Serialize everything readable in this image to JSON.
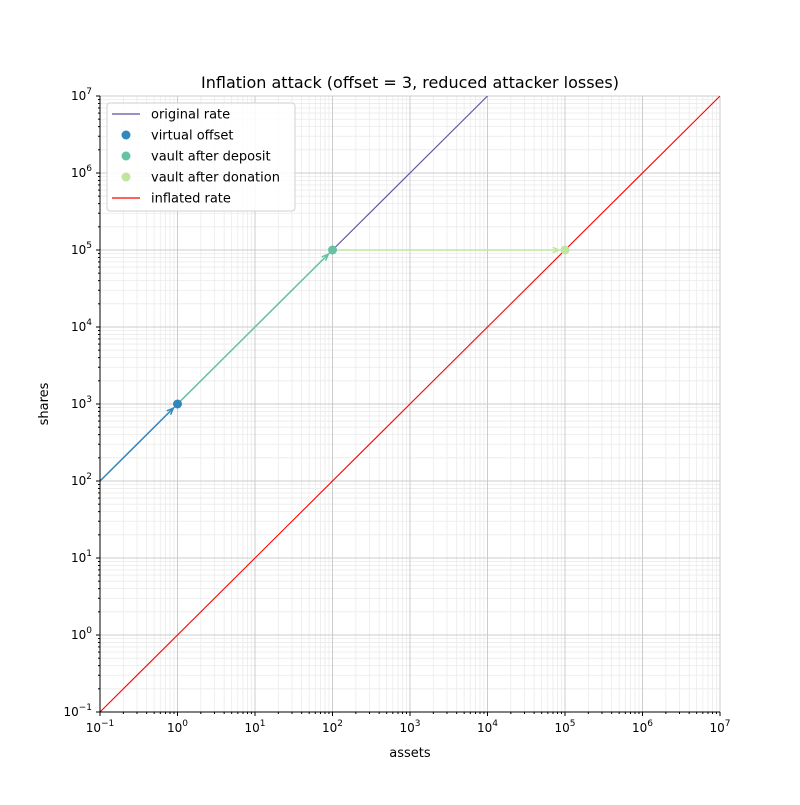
{
  "chart_data": {
    "type": "line",
    "title": "Inflation attack (offset = 3, reduced attacker losses)",
    "xlabel": "assets",
    "ylabel": "shares",
    "xscale": "log",
    "yscale": "log",
    "xlim": [
      0.1,
      10000000
    ],
    "ylim": [
      0.1,
      10000000
    ],
    "grid": true,
    "legend_placement": "top-left",
    "x_tick_exponents": [
      "-1",
      "0",
      "1",
      "2",
      "3",
      "4",
      "5",
      "6",
      "7"
    ],
    "y_tick_exponents": [
      "-1",
      "0",
      "1",
      "2",
      "3",
      "4",
      "5",
      "6",
      "7"
    ],
    "lines": [
      {
        "name": "original rate",
        "color": "#5e4fa2",
        "x": [
          0.1,
          10000
        ],
        "y": [
          100,
          10000000
        ]
      },
      {
        "name": "inflated rate",
        "color": "#ff0000",
        "x": [
          0.1,
          10000000
        ],
        "y": [
          0.1,
          10000000
        ]
      }
    ],
    "points": [
      {
        "name": "virtual offset",
        "color": "#3288bd",
        "x": 1,
        "y": 1000
      },
      {
        "name": "vault after deposit",
        "color": "#66c2a5",
        "x": 100,
        "y": 100000
      },
      {
        "name": "vault after donation",
        "color": "#c0e5a0",
        "x": 100000,
        "y": 100000
      }
    ],
    "arrows": [
      {
        "color": "#3288bd",
        "from": [
          0.1,
          100
        ],
        "to": [
          1,
          1000
        ]
      },
      {
        "color": "#66c2a5",
        "from": [
          1,
          1000
        ],
        "to": [
          100,
          100000
        ]
      },
      {
        "color": "#c0e5a0",
        "from": [
          100,
          100000
        ],
        "to": [
          100000,
          100000
        ]
      }
    ],
    "legend": [
      "original rate",
      "virtual offset",
      "vault after deposit",
      "vault after donation",
      "inflated rate"
    ]
  }
}
